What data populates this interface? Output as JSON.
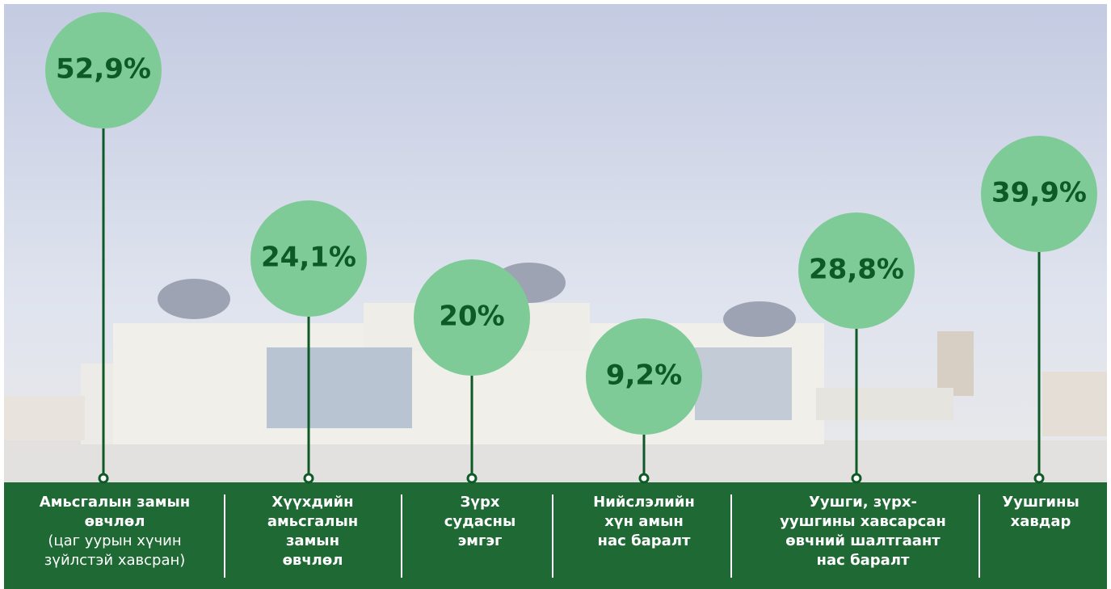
{
  "items": [
    {
      "value": "52,9%",
      "label_lines": [
        "Амьсгалын замын",
        "өвчлөл"
      ],
      "note_lines": [
        "(цаг уурын хүчин",
        "зүйлстэй хавсран)"
      ]
    },
    {
      "value": "24,1%",
      "label_lines": [
        "Хүүхдийн",
        "амьсгалын",
        "замын",
        "өвчлөл"
      ]
    },
    {
      "value": "20%",
      "label_lines": [
        "Зүрх",
        "судасны",
        "эмгэг"
      ]
    },
    {
      "value": "9,2%",
      "label_lines": [
        "Нийслэлийн",
        "хүн амын",
        "нас баралт"
      ]
    },
    {
      "value": "28,8%",
      "label_lines": [
        "Уушги, зүрх-",
        "уушгины хавсарсан",
        "өвчний шалтгаант",
        "нас баралт"
      ]
    },
    {
      "value": "39,9%",
      "label_lines": [
        "Уушгины",
        "хавдар"
      ]
    }
  ]
}
